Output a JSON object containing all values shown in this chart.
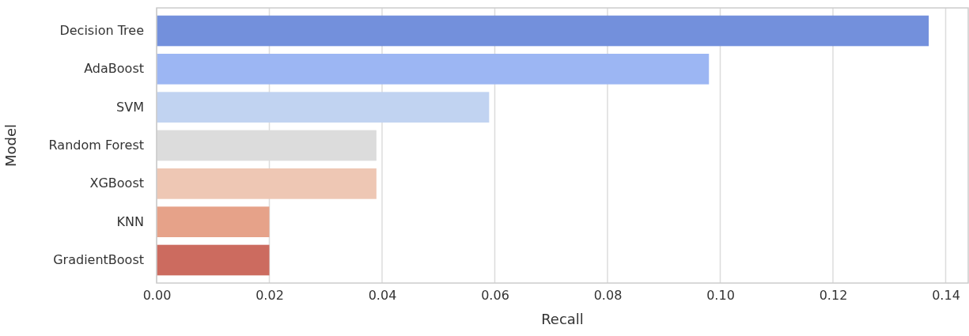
{
  "chart_data": {
    "type": "bar",
    "orientation": "horizontal",
    "xlabel": "Recall",
    "ylabel": "Model",
    "categories": [
      "Decision Tree",
      "AdaBoost",
      "SVM",
      "Random Forest",
      "XGBoost",
      "KNN",
      "GradientBoost"
    ],
    "values": [
      0.137,
      0.098,
      0.059,
      0.039,
      0.039,
      0.02,
      0.02
    ],
    "colors": [
      "#7390dc",
      "#9cb6f3",
      "#c1d3f1",
      "#dcdcdc",
      "#eec7b4",
      "#e6a289",
      "#cc6b5f"
    ],
    "xlim": [
      0,
      0.144
    ],
    "xticks": [
      {
        "value": 0,
        "label": "0.00"
      },
      {
        "value": 0.02,
        "label": "0.02"
      },
      {
        "value": 0.04,
        "label": "0.04"
      },
      {
        "value": 0.06,
        "label": "0.06"
      },
      {
        "value": 0.08,
        "label": "0.08"
      },
      {
        "value": 0.1,
        "label": "0.10"
      },
      {
        "value": 0.12,
        "label": "0.12"
      },
      {
        "value": 0.14,
        "label": "0.14"
      }
    ],
    "grid": "x"
  }
}
